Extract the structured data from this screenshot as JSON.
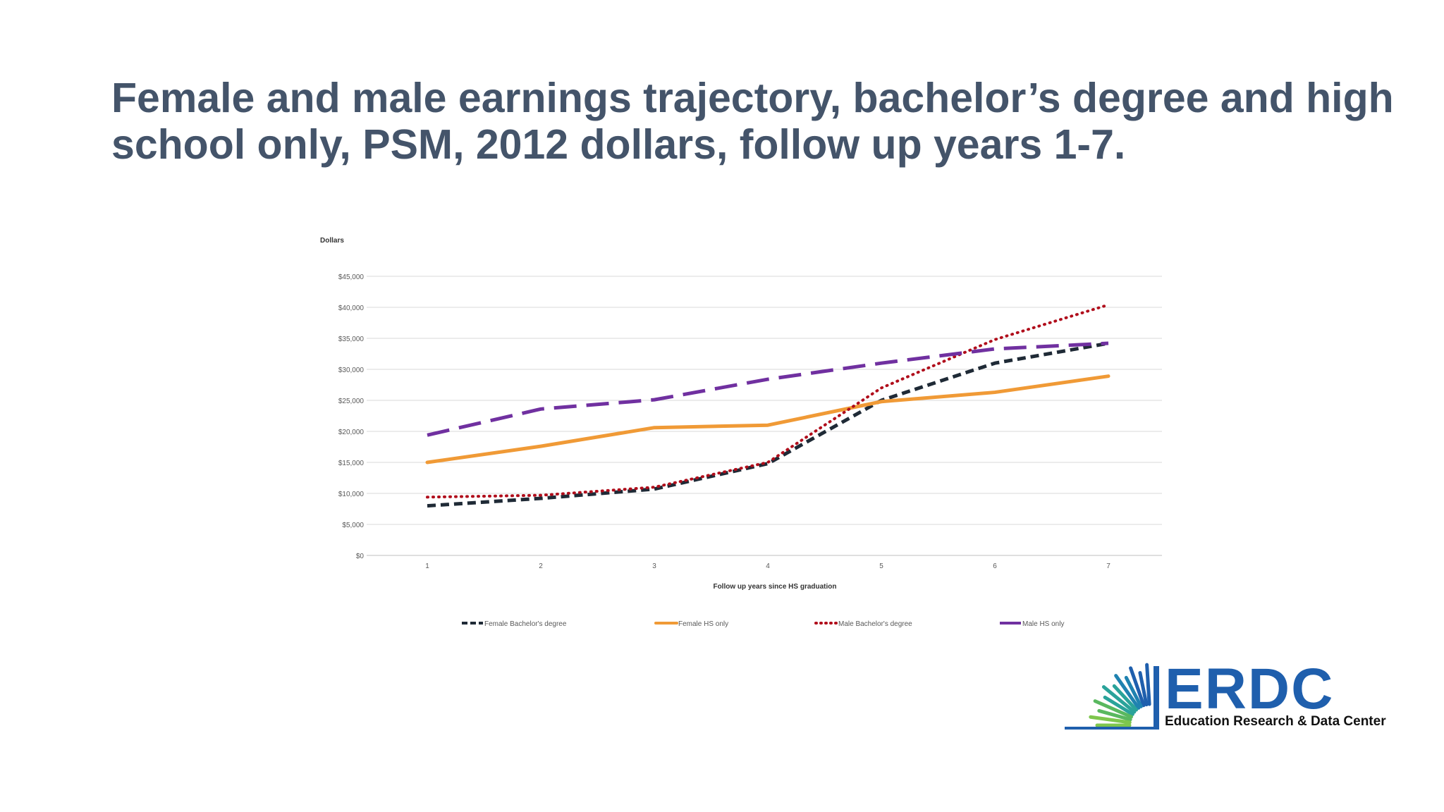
{
  "slide": {
    "title": "Female and male earnings trajectory, bachelor’s degree and high school only, PSM, 2012 dollars, follow up years 1-7."
  },
  "chart_data": {
    "type": "line",
    "title": "",
    "ylabel": "Dollars",
    "xlabel": "Follow up years since HS graduation",
    "x": [
      1,
      2,
      3,
      4,
      5,
      6,
      7
    ],
    "ylim": [
      0,
      45000
    ],
    "y_ticks": [
      0,
      5000,
      10000,
      15000,
      20000,
      25000,
      30000,
      35000,
      40000,
      45000
    ],
    "y_tick_labels": [
      "$0",
      "$5,000",
      "$10,000",
      "$15,000",
      "$20,000",
      "$25,000",
      "$30,000",
      "$35,000",
      "$40,000",
      "$45,000"
    ],
    "grid": true,
    "legend_position": "bottom",
    "series": [
      {
        "name": "Female Bachelor's degree",
        "values": [
          8000,
          9200,
          10700,
          14800,
          25000,
          31000,
          34200
        ],
        "color": "#1f2a36",
        "style": "dashed"
      },
      {
        "name": "Female HS only",
        "values": [
          15000,
          17600,
          20600,
          21000,
          24800,
          26300,
          28900
        ],
        "color": "#f09a36",
        "style": "solid"
      },
      {
        "name": "Male Bachelor's degree",
        "values": [
          9400,
          9700,
          11000,
          15000,
          27000,
          34800,
          40400
        ],
        "color": "#b00d1b",
        "style": "dotted"
      },
      {
        "name": "Male HS only",
        "values": [
          19400,
          23600,
          25100,
          28400,
          31000,
          33300,
          34200
        ],
        "color": "#7030a0",
        "style": "longdash"
      }
    ]
  },
  "logo": {
    "text": "ERDC",
    "subtitle": "Education Research & Data Center",
    "color": "#1f5fad",
    "ray_colors": [
      "#1f5fad",
      "#1f82b0",
      "#2aa39a",
      "#59b85f",
      "#7ec64d"
    ]
  }
}
